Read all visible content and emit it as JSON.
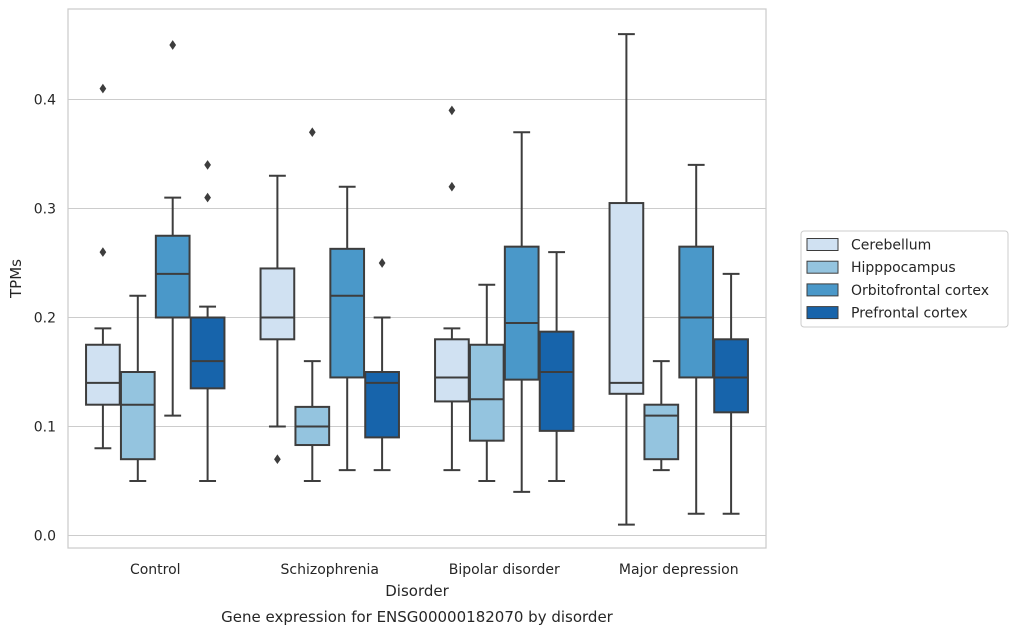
{
  "chart_data": {
    "type": "box",
    "title": "",
    "caption": "Gene expression for ENSG00000182070 by disorder",
    "xlabel": "Disorder",
    "ylabel": "TPMs",
    "ylim": [
      -0.01,
      0.485
    ],
    "yticks": [
      0.0,
      0.1,
      0.2,
      0.3,
      0.4
    ],
    "ytick_labels": [
      "0.0",
      "0.1",
      "0.2",
      "0.3",
      "0.4"
    ],
    "grid": "horizontal",
    "legend_position": "right",
    "categories": [
      "Control",
      "Schizophrenia",
      "Bipolar disorder",
      "Major depression"
    ],
    "series": [
      {
        "name": "Cerebellum",
        "color": "#d0e1f2",
        "boxes": [
          {
            "whisker_low": 0.08,
            "q1": 0.12,
            "median": 0.14,
            "q3": 0.175,
            "whisker_high": 0.19,
            "outliers": [
              0.41,
              0.26
            ]
          },
          {
            "whisker_low": 0.1,
            "q1": 0.18,
            "median": 0.2,
            "q3": 0.245,
            "whisker_high": 0.33,
            "outliers": [
              0.07
            ]
          },
          {
            "whisker_low": 0.06,
            "q1": 0.123,
            "median": 0.145,
            "q3": 0.18,
            "whisker_high": 0.19,
            "outliers": [
              0.39,
              0.32
            ]
          },
          {
            "whisker_low": 0.01,
            "q1": 0.13,
            "median": 0.14,
            "q3": 0.305,
            "whisker_high": 0.46,
            "outliers": []
          }
        ]
      },
      {
        "name": "Hipppocampus",
        "color": "#94c4df",
        "boxes": [
          {
            "whisker_low": 0.05,
            "q1": 0.07,
            "median": 0.12,
            "q3": 0.15,
            "whisker_high": 0.22,
            "outliers": []
          },
          {
            "whisker_low": 0.05,
            "q1": 0.083,
            "median": 0.1,
            "q3": 0.118,
            "whisker_high": 0.16,
            "outliers": [
              0.37
            ]
          },
          {
            "whisker_low": 0.05,
            "q1": 0.087,
            "median": 0.125,
            "q3": 0.175,
            "whisker_high": 0.23,
            "outliers": []
          },
          {
            "whisker_low": 0.06,
            "q1": 0.07,
            "median": 0.11,
            "q3": 0.12,
            "whisker_high": 0.16,
            "outliers": []
          }
        ]
      },
      {
        "name": "Orbitofrontal cortex",
        "color": "#4a98c9",
        "boxes": [
          {
            "whisker_low": 0.11,
            "q1": 0.2,
            "median": 0.24,
            "q3": 0.275,
            "whisker_high": 0.31,
            "outliers": [
              0.45
            ]
          },
          {
            "whisker_low": 0.06,
            "q1": 0.145,
            "median": 0.22,
            "q3": 0.263,
            "whisker_high": 0.32,
            "outliers": []
          },
          {
            "whisker_low": 0.04,
            "q1": 0.143,
            "median": 0.195,
            "q3": 0.265,
            "whisker_high": 0.37,
            "outliers": []
          },
          {
            "whisker_low": 0.02,
            "q1": 0.145,
            "median": 0.2,
            "q3": 0.265,
            "whisker_high": 0.34,
            "outliers": []
          }
        ]
      },
      {
        "name": "Prefrontal cortex",
        "color": "#1764ab",
        "boxes": [
          {
            "whisker_low": 0.05,
            "q1": 0.135,
            "median": 0.16,
            "q3": 0.2,
            "whisker_high": 0.21,
            "outliers": [
              0.34,
              0.31
            ]
          },
          {
            "whisker_low": 0.06,
            "q1": 0.09,
            "median": 0.14,
            "q3": 0.15,
            "whisker_high": 0.2,
            "outliers": [
              0.25
            ]
          },
          {
            "whisker_low": 0.05,
            "q1": 0.096,
            "median": 0.15,
            "q3": 0.187,
            "whisker_high": 0.26,
            "outliers": []
          },
          {
            "whisker_low": 0.02,
            "q1": 0.113,
            "median": 0.145,
            "q3": 0.18,
            "whisker_high": 0.24,
            "outliers": []
          }
        ]
      }
    ]
  }
}
